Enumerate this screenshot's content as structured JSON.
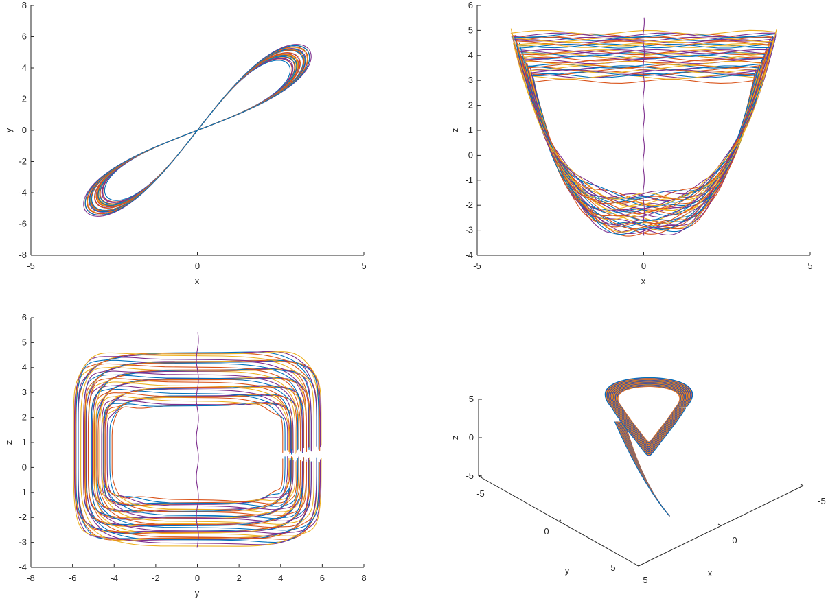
{
  "figure": {
    "background": "#ffffff"
  },
  "chart_data": [
    {
      "id": "xy",
      "type": "line",
      "title": "",
      "xlabel": "x",
      "ylabel": "y",
      "xlim": [
        -5,
        5
      ],
      "ylim": [
        -8,
        8
      ],
      "xticks": [
        -5,
        0,
        5
      ],
      "yticks": [
        -8,
        -6,
        -4,
        -2,
        0,
        2,
        4,
        6,
        8
      ],
      "grid": false,
      "legend": "none",
      "series_colors": [
        "#0072BD",
        "#D95319",
        "#EDB120",
        "#7E2F8E"
      ],
      "approximate_outer_extent": {
        "x": [
          -4.1,
          4.0
        ],
        "y": [
          -6.1,
          6.1
        ]
      }
    },
    {
      "id": "xz",
      "type": "line",
      "title": "",
      "xlabel": "x",
      "ylabel": "z",
      "xlim": [
        -5,
        5
      ],
      "ylim": [
        -4,
        6
      ],
      "xticks": [
        -5,
        0,
        5
      ],
      "yticks": [
        -4,
        -3,
        -2,
        -1,
        0,
        1,
        2,
        3,
        4,
        5,
        6
      ],
      "grid": false,
      "legend": "none",
      "series_colors": [
        "#0072BD",
        "#D95319",
        "#EDB120",
        "#7E2F8E"
      ],
      "approximate_outer_extent": {
        "x": [
          -4.1,
          4.1
        ],
        "z": [
          -3.3,
          5.6
        ]
      }
    },
    {
      "id": "yz",
      "type": "line",
      "title": "",
      "xlabel": "y",
      "ylabel": "z",
      "xlim": [
        -8,
        8
      ],
      "ylim": [
        -4,
        6
      ],
      "xticks": [
        -8,
        -6,
        -4,
        -2,
        0,
        2,
        4,
        6,
        8
      ],
      "yticks": [
        -4,
        -3,
        -2,
        -1,
        0,
        1,
        2,
        3,
        4,
        5,
        6
      ],
      "grid": false,
      "legend": "none",
      "series_colors": [
        "#0072BD",
        "#D95319",
        "#EDB120",
        "#7E2F8E"
      ],
      "approximate_outer_extent": {
        "y": [
          -6.1,
          6.1
        ],
        "z": [
          -3.3,
          5.6
        ]
      }
    },
    {
      "id": "xyz",
      "type": "line3d",
      "title": "",
      "xlabel": "x",
      "ylabel": "y",
      "zlabel": "z",
      "xticks": [
        -5,
        0,
        5
      ],
      "yticks": [
        -5,
        0,
        5
      ],
      "zticks": [
        -5,
        0,
        5
      ],
      "grid": false,
      "legend": "none",
      "series_colors": [
        "#0072BD",
        "#D95319",
        "#EDB120",
        "#7E2F8E"
      ]
    }
  ]
}
